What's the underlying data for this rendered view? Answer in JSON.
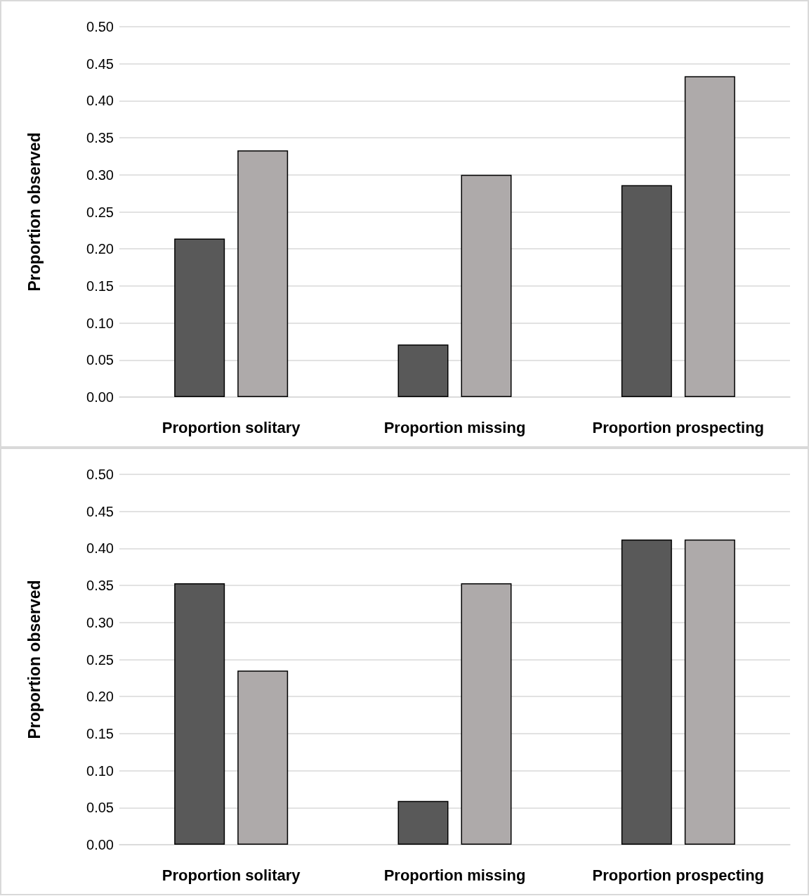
{
  "chart_data": [
    {
      "type": "bar",
      "ylabel": "Proportion observed",
      "categories": [
        "Proportion solitary",
        "Proportion missing",
        "Proportion prospecting"
      ],
      "series": [
        {
          "color": "#595959",
          "values": [
            0.214,
            0.071,
            0.286
          ]
        },
        {
          "color": "#aeaaaa",
          "values": [
            0.333,
            0.3,
            0.433
          ]
        }
      ],
      "ylim": [
        0,
        0.5
      ],
      "yticks": [
        {
          "value": 0,
          "label": "0.00"
        },
        {
          "value": 0.05,
          "label": "0.05"
        },
        {
          "value": 0.1,
          "label": "0.10"
        },
        {
          "value": 0.15,
          "label": "0.15"
        },
        {
          "value": 0.2,
          "label": "0.20"
        },
        {
          "value": 0.25,
          "label": "0.25"
        },
        {
          "value": 0.3,
          "label": "0.30"
        },
        {
          "value": 0.35,
          "label": "0.35"
        },
        {
          "value": 0.4,
          "label": "0.40"
        },
        {
          "value": 0.45,
          "label": "0.45"
        },
        {
          "value": 0.5,
          "label": "0.50"
        }
      ],
      "grid": "y"
    },
    {
      "type": "bar",
      "ylabel": "Proportion observed",
      "categories": [
        "Proportion solitary",
        "Proportion missing",
        "Proportion prospecting"
      ],
      "series": [
        {
          "color": "#595959",
          "values": [
            0.353,
            0.059,
            0.412
          ]
        },
        {
          "color": "#aeaaaa",
          "values": [
            0.235,
            0.353,
            0.412
          ]
        }
      ],
      "ylim": [
        0,
        0.5
      ],
      "yticks": [
        {
          "value": 0,
          "label": "0.00"
        },
        {
          "value": 0.05,
          "label": "0.05"
        },
        {
          "value": 0.1,
          "label": "0.10"
        },
        {
          "value": 0.15,
          "label": "0.15"
        },
        {
          "value": 0.2,
          "label": "0.20"
        },
        {
          "value": 0.25,
          "label": "0.25"
        },
        {
          "value": 0.3,
          "label": "0.30"
        },
        {
          "value": 0.35,
          "label": "0.35"
        },
        {
          "value": 0.4,
          "label": "0.40"
        },
        {
          "value": 0.45,
          "label": "0.45"
        },
        {
          "value": 0.5,
          "label": "0.50"
        }
      ],
      "grid": "y"
    }
  ]
}
